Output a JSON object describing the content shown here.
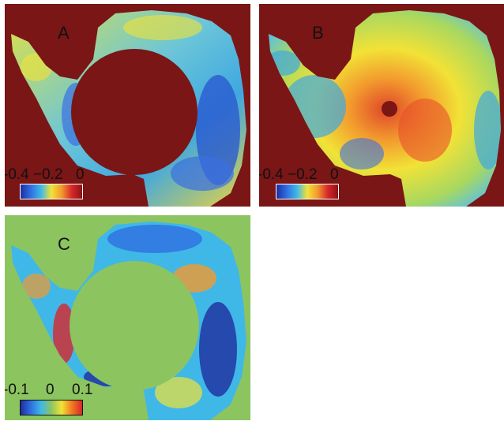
{
  "panels": [
    {
      "id": "A",
      "letter": "A",
      "background_color": "#7a1616",
      "colorbar": {
        "ticks": [
          "-0.4",
          "−0.2",
          "0"
        ],
        "colors": [
          "#1f2d9e",
          "#2f6fe0",
          "#3fb8e8",
          "#f2e236",
          "#f29a2e",
          "#d8262a",
          "#8c1414"
        ],
        "border_color": "#ffffff"
      }
    },
    {
      "id": "B",
      "letter": "B",
      "background_color": "#7a1616",
      "colorbar": {
        "ticks": [
          "-0.4",
          "−0.2",
          "0"
        ],
        "colors": [
          "#1f2d9e",
          "#2f6fe0",
          "#3fb8e8",
          "#f2e236",
          "#f29a2e",
          "#d8262a",
          "#8c1414"
        ],
        "border_color": "#ffffff"
      }
    },
    {
      "id": "C",
      "letter": "C",
      "background_color": "#8cc460",
      "colorbar": {
        "ticks": [
          "-0.1",
          "0",
          "0.1"
        ],
        "colors": [
          "#1f2d9e",
          "#2f6fe0",
          "#3fb8e8",
          "#8cc460",
          "#f2e236",
          "#f07a22",
          "#d8262a"
        ],
        "border_color": "#111111"
      }
    }
  ]
}
